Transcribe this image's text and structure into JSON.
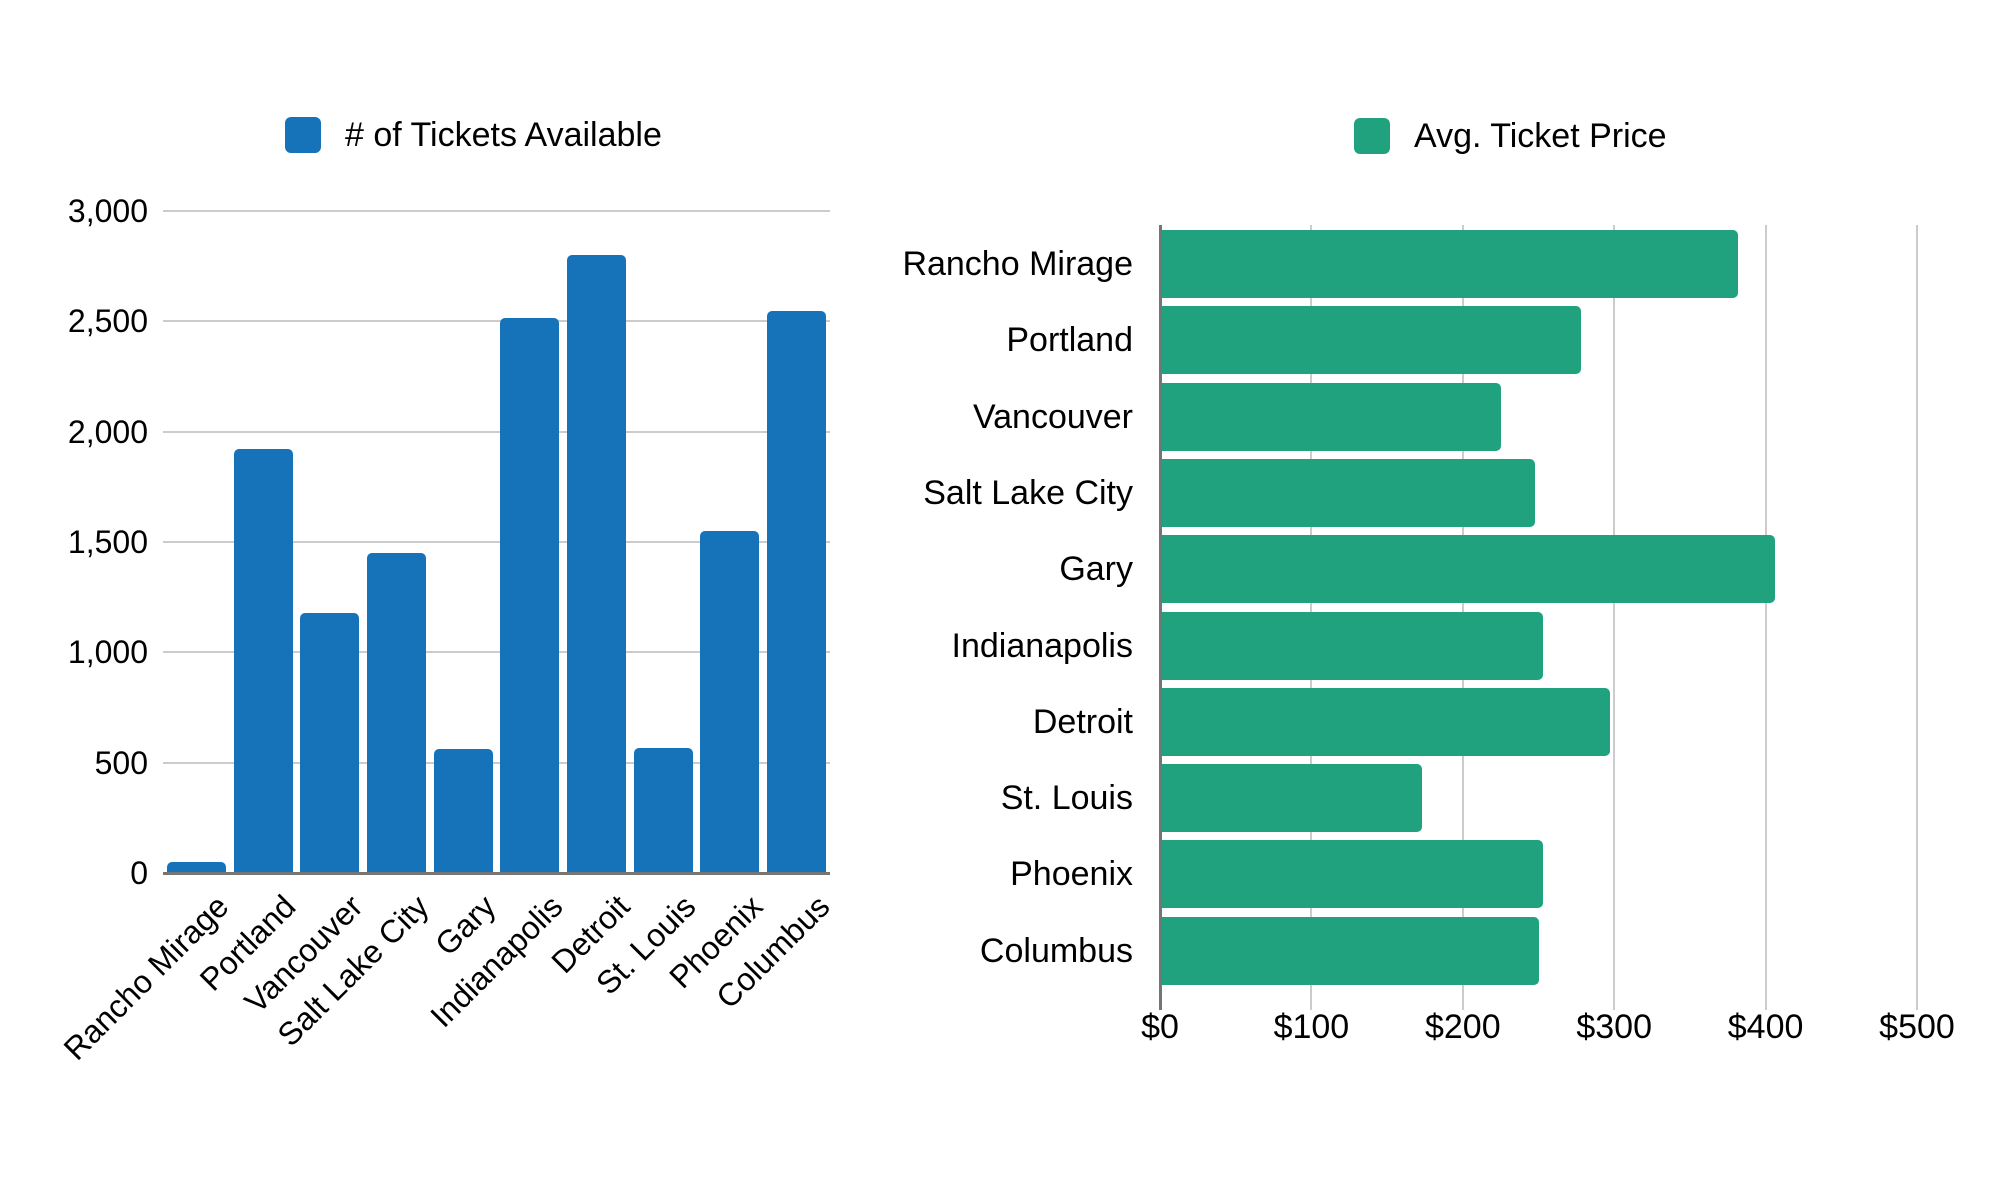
{
  "page": {
    "background": "#ffffff"
  },
  "chart_data": [
    {
      "type": "bar",
      "orientation": "vertical",
      "legend": "# of Tickets Available",
      "legend_position": "top",
      "series_color": "#1673B9",
      "grid": true,
      "categories": [
        "Rancho Mirage",
        "Portland",
        "Vancouver",
        "Salt Lake City",
        "Gary",
        "Indianapolis",
        "Detroit",
        "St. Louis",
        "Phoenix",
        "Columbus"
      ],
      "values": [
        50,
        1920,
        1180,
        1450,
        560,
        2515,
        2800,
        565,
        1550,
        2545
      ],
      "xlabel": "",
      "ylabel": "",
      "ylim": [
        0,
        3000
      ],
      "yticks": [
        0,
        500,
        1000,
        1500,
        2000,
        2500,
        3000
      ],
      "ytick_labels": [
        "0",
        "500",
        "1,000",
        "1,500",
        "2,000",
        "2,500",
        "3,000"
      ]
    },
    {
      "type": "bar",
      "orientation": "horizontal",
      "legend": "Avg. Ticket Price",
      "legend_position": "top",
      "series_color": "#1FA27D",
      "grid": true,
      "categories": [
        "Rancho Mirage",
        "Portland",
        "Vancouver",
        "Salt Lake City",
        "Gary",
        "Indianapolis",
        "Detroit",
        "St. Louis",
        "Phoenix",
        "Columbus"
      ],
      "values": [
        382,
        278,
        225,
        248,
        406,
        253,
        297,
        173,
        253,
        250
      ],
      "xlabel": "",
      "ylabel": "",
      "xlim": [
        0,
        500
      ],
      "xticks": [
        0,
        100,
        200,
        300,
        400,
        500
      ],
      "xtick_labels": [
        "$0",
        "$100",
        "$200",
        "$300",
        "$400",
        "$500"
      ]
    }
  ],
  "colors": {
    "grid": "#cccccc",
    "axis": "#757575",
    "text": "#000000"
  }
}
